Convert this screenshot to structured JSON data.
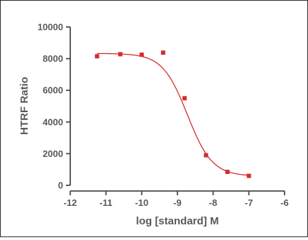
{
  "chart_data": {
    "type": "scatter",
    "title": "",
    "xlabel": "log [standard] M",
    "ylabel": "HTRF Ratio",
    "xlim": [
      -12,
      -6
    ],
    "ylim": [
      0,
      10000
    ],
    "x_ticks": [
      -12,
      -11,
      -10,
      -9,
      -8,
      -7,
      -6
    ],
    "y_ticks": [
      0,
      2000,
      4000,
      6000,
      8000,
      10000
    ],
    "x_tick_labels": [
      "-12",
      "-11",
      "-10",
      "-9",
      "-8",
      "-7",
      "-6"
    ],
    "y_tick_labels": [
      "0",
      "2000",
      "4000",
      "6000",
      "8000",
      "10000"
    ],
    "grid": false,
    "series": [
      {
        "x": [
          -11.25,
          -10.6,
          -10.0,
          -9.4,
          -8.8,
          -8.2,
          -7.6,
          -7.0
        ],
        "y": [
          8150,
          8280,
          8250,
          8380,
          5500,
          1900,
          850,
          600
        ],
        "marker": "square",
        "fit": "sigmoidal dose-response",
        "fit_params": {
          "top": 8330,
          "bottom": 580,
          "log_ic50": -8.72,
          "hill_slope": -1.25
        },
        "color": "#d42d2d"
      }
    ]
  }
}
